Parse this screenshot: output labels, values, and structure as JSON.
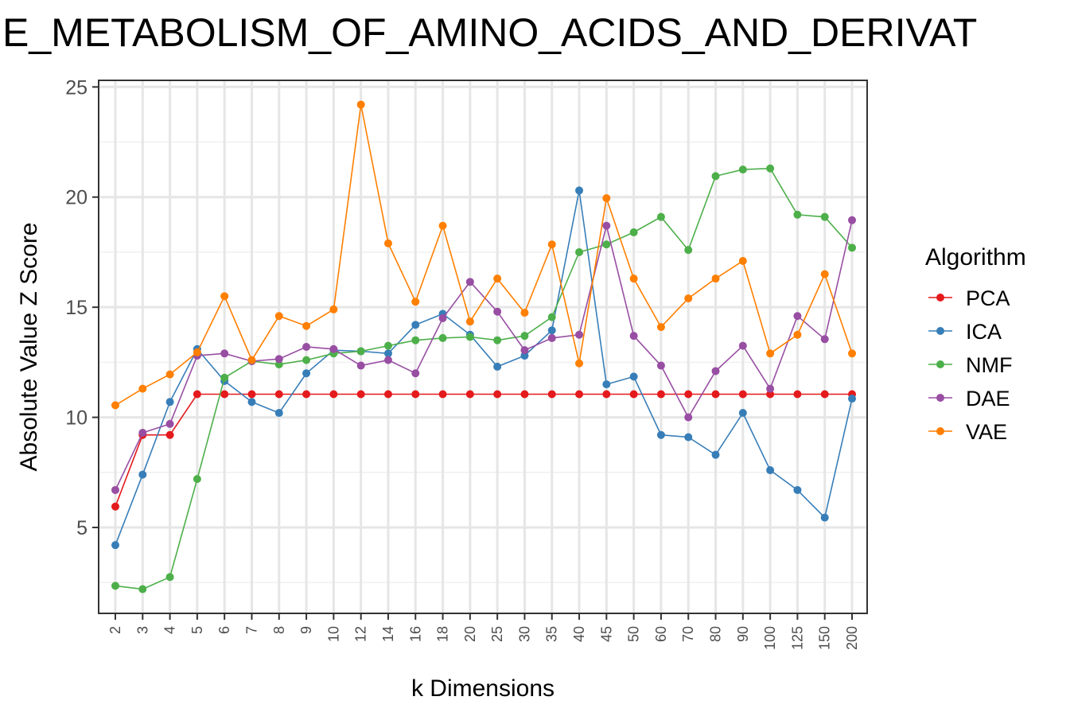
{
  "chart_data": {
    "type": "line",
    "title": "E_METABOLISM_OF_AMINO_ACIDS_AND_DERIVAT",
    "xlabel": "k Dimensions",
    "ylabel": "Absolute Value Z Score",
    "legend_title": "Algorithm",
    "legend_position": "right",
    "grid": true,
    "ylim": [
      1.1,
      25.3
    ],
    "yticks": [
      5,
      10,
      15,
      20,
      25
    ],
    "categories": [
      "2",
      "3",
      "4",
      "5",
      "6",
      "7",
      "8",
      "9",
      "10",
      "12",
      "14",
      "16",
      "18",
      "20",
      "25",
      "30",
      "35",
      "40",
      "45",
      "50",
      "60",
      "70",
      "80",
      "90",
      "100",
      "125",
      "150",
      "200"
    ],
    "series": [
      {
        "name": "PCA",
        "color": "#E41A1C",
        "values": [
          5.95,
          9.2,
          9.2,
          11.05,
          11.05,
          11.05,
          11.05,
          11.05,
          11.05,
          11.05,
          11.05,
          11.05,
          11.05,
          11.05,
          11.05,
          11.05,
          11.05,
          11.05,
          11.05,
          11.05,
          11.05,
          11.05,
          11.05,
          11.05,
          11.05,
          11.05,
          11.05,
          11.05
        ]
      },
      {
        "name": "ICA",
        "color": "#377EB8",
        "values": [
          4.2,
          7.4,
          10.7,
          13.1,
          11.65,
          10.7,
          10.2,
          12.0,
          13.05,
          13.0,
          12.9,
          14.2,
          14.7,
          13.75,
          12.3,
          12.8,
          13.95,
          20.3,
          11.5,
          11.85,
          9.2,
          9.1,
          8.3,
          10.2,
          7.6,
          6.7,
          5.45,
          10.85
        ]
      },
      {
        "name": "NMF",
        "color": "#4DAF4A",
        "values": [
          2.35,
          2.2,
          2.75,
          7.2,
          11.8,
          12.55,
          12.4,
          12.6,
          12.9,
          13.0,
          13.25,
          13.5,
          13.6,
          13.65,
          13.5,
          13.7,
          14.55,
          17.5,
          17.85,
          18.4,
          19.1,
          17.6,
          20.95,
          21.25,
          21.3,
          19.2,
          19.1,
          17.7
        ]
      },
      {
        "name": "DAE",
        "color": "#984EA3",
        "values": [
          6.7,
          9.3,
          9.7,
          12.8,
          12.9,
          12.55,
          12.65,
          13.2,
          13.1,
          12.35,
          12.6,
          12.0,
          14.5,
          16.15,
          14.8,
          13.05,
          13.6,
          13.75,
          18.7,
          13.7,
          12.35,
          10.0,
          12.1,
          13.25,
          11.3,
          14.6,
          13.55,
          18.95
        ]
      },
      {
        "name": "VAE",
        "color": "#FF7F00",
        "values": [
          10.55,
          11.3,
          11.95,
          12.95,
          15.5,
          12.6,
          14.6,
          14.15,
          14.9,
          24.2,
          17.9,
          15.25,
          18.7,
          14.35,
          16.3,
          14.75,
          17.85,
          12.45,
          19.95,
          16.3,
          14.1,
          15.4,
          16.3,
          17.1,
          12.9,
          13.75,
          16.5,
          12.9
        ]
      }
    ]
  }
}
